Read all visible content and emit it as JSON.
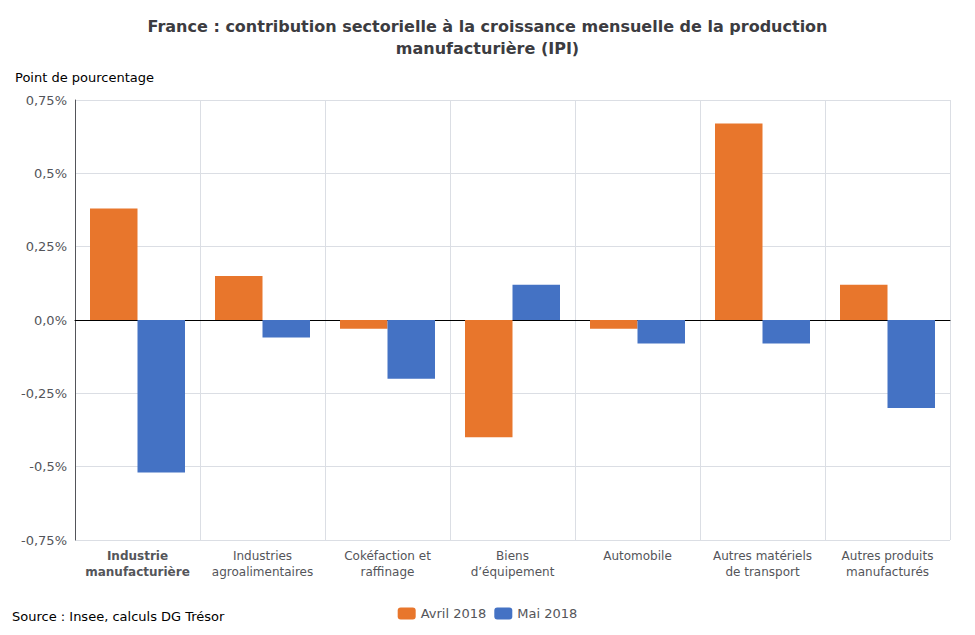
{
  "chart_data": {
    "type": "bar",
    "title": "France : contribution sectorielle à la croissance mensuelle de la production\nmanufacturière (IPI)",
    "ylabel": "Point de pourcentage",
    "categories": [
      "Industrie\nmanufacturière",
      "Industries\nagroalimentaires",
      "Cokéfaction et\nraffinage",
      "Biens\nd’équipement",
      "Automobile",
      "Autres matériels\nde transport",
      "Autres produits\nmanufacturés"
    ],
    "series": [
      {
        "name": "Avril 2018",
        "color": "#E8762C",
        "values": [
          0.38,
          0.15,
          -0.03,
          -0.4,
          -0.03,
          0.67,
          0.12
        ]
      },
      {
        "name": "Mai 2018",
        "color": "#4472C4",
        "values": [
          -0.52,
          -0.06,
          -0.2,
          0.12,
          -0.08,
          -0.08,
          -0.3
        ]
      }
    ],
    "ylim": [
      -0.75,
      0.75
    ],
    "yticks": [
      {
        "value": -0.75,
        "label": "-0,75%"
      },
      {
        "value": -0.5,
        "label": "-0,5%"
      },
      {
        "value": -0.25,
        "label": "-0,25%"
      },
      {
        "value": 0.0,
        "label": "0,0%"
      },
      {
        "value": 0.25,
        "label": "0,25%"
      },
      {
        "value": 0.5,
        "label": "0,5%"
      },
      {
        "value": 0.75,
        "label": "0,75%"
      }
    ],
    "grid": true,
    "legend": "bottom",
    "annotations": [
      "Source : Insee, calculs DG Trésor"
    ]
  }
}
